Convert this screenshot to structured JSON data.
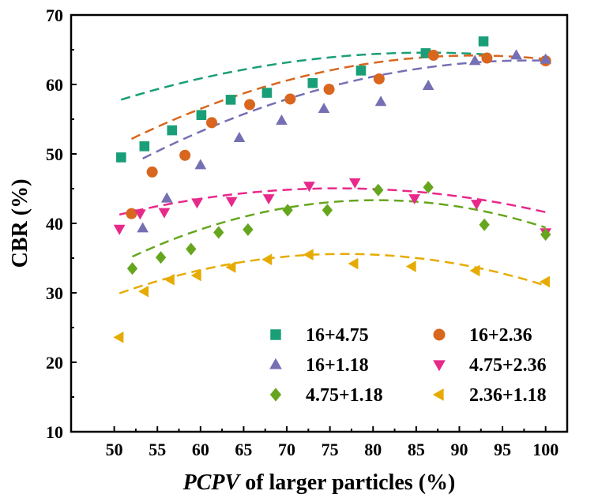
{
  "chart_data": {
    "type": "scatter",
    "xlabel": {
      "italic": "PCPV",
      "rest": " of larger particles (%)"
    },
    "ylabel": "CBR (%)",
    "xlim": [
      45,
      102.5
    ],
    "ylim": [
      10,
      70
    ],
    "xticks": [
      "50",
      "55",
      "60",
      "65",
      "70",
      "75",
      "80",
      "85",
      "90",
      "95",
      "100"
    ],
    "yticks": [
      "10",
      "20",
      "30",
      "40",
      "50",
      "60",
      "70"
    ],
    "legend_position": "bottom-right",
    "series": [
      {
        "name": "16+4.75",
        "color": "#1a9e78",
        "marker": "square",
        "points": [
          [
            50.8,
            49.5
          ],
          [
            53.5,
            51.1
          ],
          [
            56.7,
            53.4
          ],
          [
            60.1,
            55.6
          ],
          [
            63.5,
            57.8
          ],
          [
            67.7,
            58.8
          ],
          [
            73.0,
            60.2
          ],
          [
            78.6,
            62.0
          ],
          [
            86.1,
            64.5
          ],
          [
            92.8,
            66.2
          ]
        ],
        "fit": [
          -0.00538,
          0.9285,
          24.52
        ]
      },
      {
        "name": "16+2.36",
        "color": "#d9661f",
        "marker": "circle",
        "points": [
          [
            52.0,
            41.4
          ],
          [
            54.4,
            47.4
          ],
          [
            58.2,
            49.8
          ],
          [
            61.3,
            54.5
          ],
          [
            65.7,
            57.1
          ],
          [
            70.4,
            57.9
          ],
          [
            74.9,
            59.3
          ],
          [
            80.7,
            60.8
          ],
          [
            87.0,
            64.2
          ],
          [
            93.2,
            63.8
          ],
          [
            100.0,
            63.4
          ]
        ],
        "fit": [
          -0.00758,
          1.3916,
          0.29
        ]
      },
      {
        "name": "16+1.18",
        "color": "#7570b3",
        "marker": "triangle-up",
        "points": [
          [
            53.3,
            39.3
          ],
          [
            56.1,
            43.6
          ],
          [
            60.0,
            48.4
          ],
          [
            64.5,
            52.3
          ],
          [
            69.4,
            54.8
          ],
          [
            74.3,
            56.5
          ],
          [
            80.9,
            57.5
          ],
          [
            86.4,
            59.8
          ],
          [
            91.8,
            63.4
          ],
          [
            96.6,
            64.2
          ],
          [
            100.0,
            63.6
          ]
        ],
        "fit": [
          -0.00698,
          1.3722,
          -3.98
        ]
      },
      {
        "name": "4.75+2.36",
        "color": "#e7298a",
        "marker": "triangle-down",
        "points": [
          [
            50.6,
            39.2
          ],
          [
            53.0,
            41.4
          ],
          [
            55.8,
            41.6
          ],
          [
            59.6,
            43.0
          ],
          [
            63.6,
            43.2
          ],
          [
            67.9,
            43.6
          ],
          [
            72.6,
            45.4
          ],
          [
            77.9,
            45.9
          ],
          [
            84.8,
            43.6
          ],
          [
            92.0,
            42.8
          ],
          [
            100.0,
            38.7
          ]
        ],
        "fit": [
          -0.00591,
          0.8971,
          11.0
        ]
      },
      {
        "name": "4.75+1.18",
        "color": "#66a61e",
        "marker": "diamond",
        "points": [
          [
            52.1,
            33.5
          ],
          [
            55.4,
            35.1
          ],
          [
            58.9,
            36.3
          ],
          [
            62.1,
            38.7
          ],
          [
            65.5,
            39.1
          ],
          [
            70.1,
            41.9
          ],
          [
            74.7,
            41.9
          ],
          [
            80.6,
            44.8
          ],
          [
            86.4,
            45.2
          ],
          [
            92.9,
            39.8
          ],
          [
            100.0,
            38.4
          ]
        ],
        "fit": [
          -0.01019,
          1.6373,
          -22.43
        ]
      },
      {
        "name": "2.36+1.18",
        "color": "#e6ab02",
        "marker": "triangle-left",
        "points": [
          [
            50.6,
            23.6
          ],
          [
            53.5,
            30.2
          ],
          [
            56.5,
            31.9
          ],
          [
            59.6,
            32.5
          ],
          [
            63.6,
            33.7
          ],
          [
            67.8,
            34.8
          ],
          [
            72.6,
            35.5
          ],
          [
            77.8,
            34.2
          ],
          [
            84.5,
            33.8
          ],
          [
            91.9,
            33.2
          ],
          [
            100.0,
            31.6
          ]
        ],
        "fit": [
          -0.00835,
          1.2802,
          -13.47
        ]
      }
    ]
  }
}
